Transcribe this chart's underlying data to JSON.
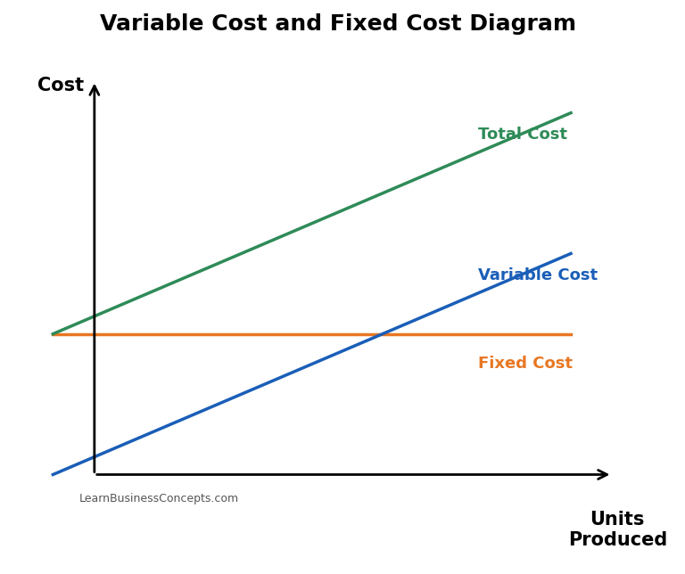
{
  "title": "Variable Cost and Fixed Cost Diagram",
  "title_fontsize": 18,
  "title_fontweight": "bold",
  "title_fontstyle": "normal",
  "xlabel": "Units\nProduced",
  "ylabel": "Cost",
  "xlabel_fontsize": 15,
  "ylabel_fontsize": 15,
  "xlabel_fontweight": "bold",
  "ylabel_fontweight": "bold",
  "background_color": "#ffffff",
  "x_range": [
    0,
    10
  ],
  "y_range": [
    0,
    10
  ],
  "fixed_cost_y": 3.5,
  "fixed_cost_color": "#E87722",
  "variable_cost_slope": 0.55,
  "variable_cost_color": "#1a5eb8",
  "total_cost_slope": 0.55,
  "total_cost_intercept": 3.5,
  "total_cost_color": "#2E8B57",
  "line_width": 2.5,
  "label_total_cost": "Total Cost",
  "label_variable_cost": "Variable Cost",
  "label_fixed_cost": "Fixed Cost",
  "label_fontsize": 13,
  "label_fontweight": "bold",
  "watermark": "LearnBusinessConcepts.com",
  "watermark_fontsize": 9
}
